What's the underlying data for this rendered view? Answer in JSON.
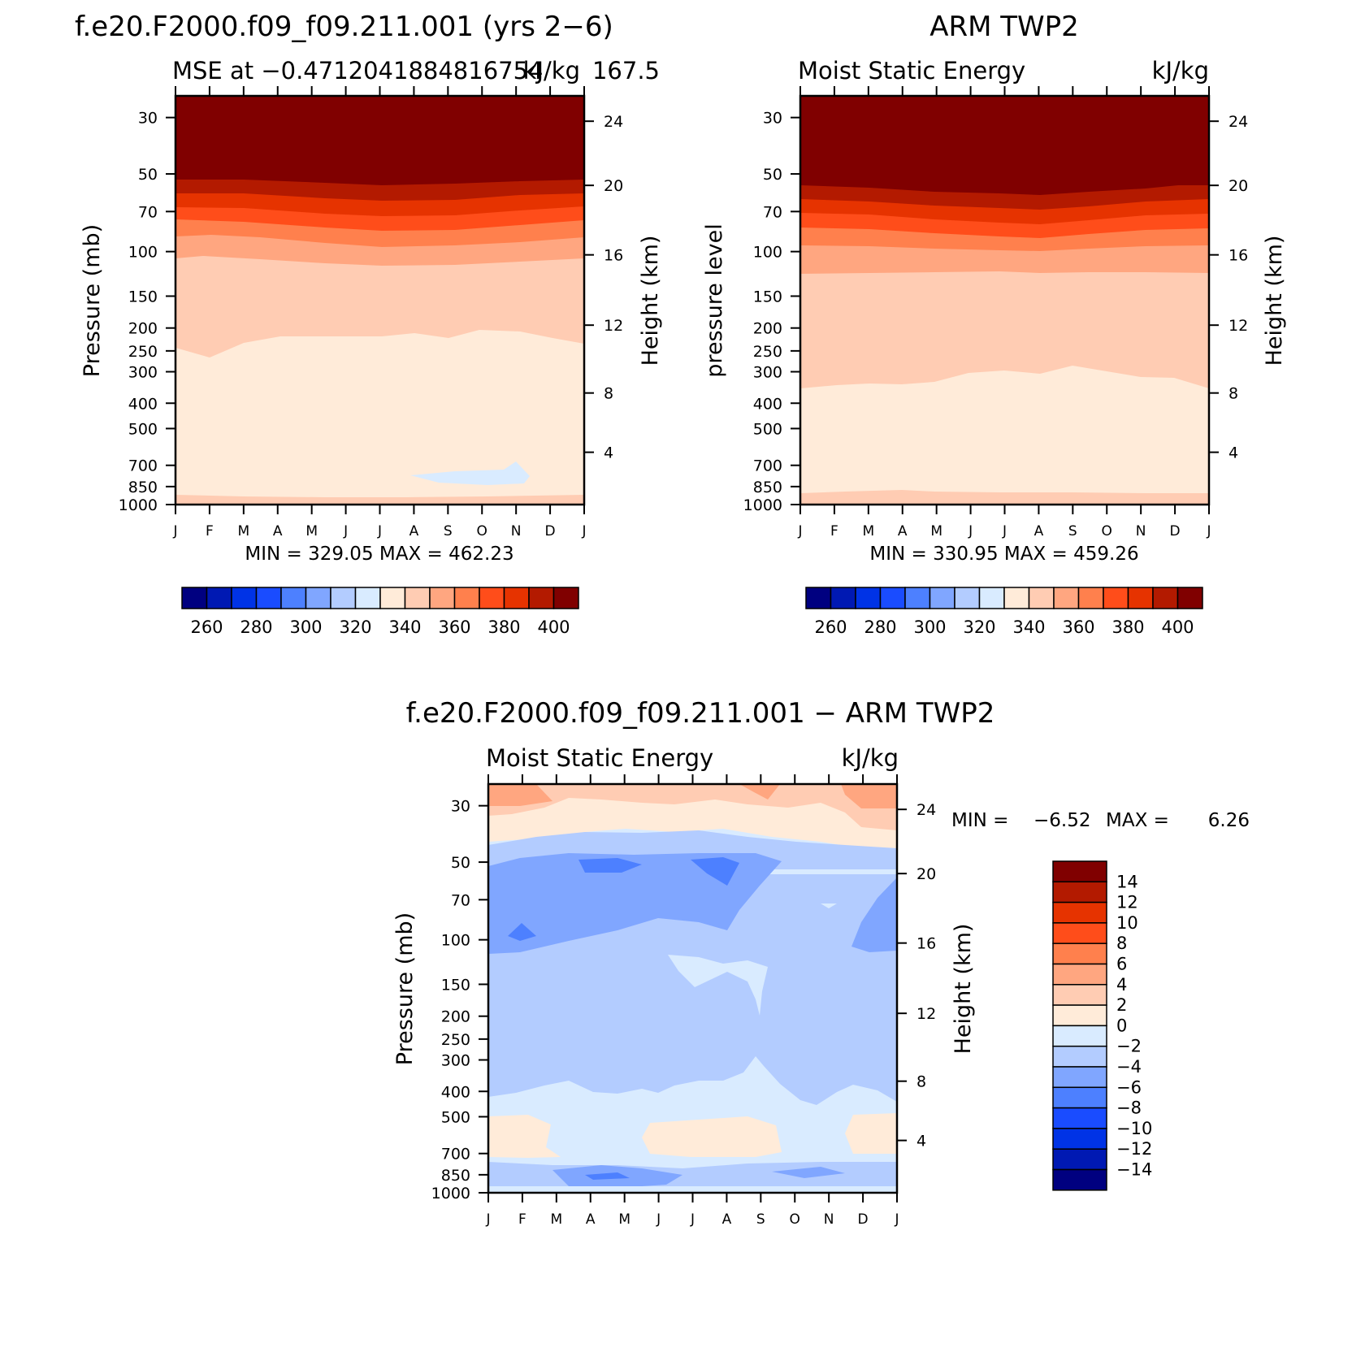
{
  "months": [
    "J",
    "F",
    "M",
    "A",
    "M",
    "J",
    "J",
    "A",
    "S",
    "O",
    "N",
    "D",
    "J"
  ],
  "pressure_ticks": [
    "30",
    "50",
    "70",
    "100",
    "150",
    "200",
    "250",
    "300",
    "400",
    "500",
    "700",
    "850",
    "1000"
  ],
  "height_ticks": [
    "24",
    "20",
    "16",
    "12",
    "8",
    "4"
  ],
  "chart_data": [
    {
      "type": "heatmap",
      "title": "f.e20.F2000.f09_f09.211.001 (yrs 2−6)",
      "subtitle_left": "MSE at −0.4712041884816754",
      "subtitle_right": "kJ/kg",
      "subtitle_extra": "167.5",
      "ylabel": "Pressure (mb)",
      "y2label": "Height (km)",
      "stats": "MIN = 329.05 MAX = 462.23",
      "colorbar_labels": [
        "260",
        "280",
        "300",
        "320",
        "340",
        "360",
        "380",
        "400"
      ],
      "colors": [
        "#000080",
        "#0019b3",
        "#0033e6",
        "#1a4cff",
        "#4d80ff",
        "#80a6ff",
        "#b3ccff",
        "#d9ebff",
        "#ffebd9",
        "#ffccb3",
        "#ffa680",
        "#ff804d",
        "#ff4d1a",
        "#e63300",
        "#b31a00",
        "#800000"
      ],
      "bands_top_to_bottom": [
        ">400",
        "390–400",
        "380–390",
        "370–380",
        "360–370",
        "350–360",
        "340–350",
        "330–340 (local pocket)",
        "340–350 (near surface)"
      ]
    },
    {
      "type": "heatmap",
      "title": "ARM TWP2",
      "subtitle_left": "Moist Static Energy",
      "subtitle_right": "kJ/kg",
      "ylabel": "pressure level",
      "y2label": "Height (km)",
      "stats": "MIN = 330.95 MAX = 459.26",
      "colorbar_labels": [
        "260",
        "280",
        "300",
        "320",
        "340",
        "360",
        "380",
        "400"
      ],
      "colors": [
        "#000080",
        "#0019b3",
        "#0033e6",
        "#1a4cff",
        "#4d80ff",
        "#80a6ff",
        "#b3ccff",
        "#d9ebff",
        "#ffebd9",
        "#ffccb3",
        "#ffa680",
        "#ff804d",
        "#ff4d1a",
        "#e63300",
        "#b31a00",
        "#800000"
      ],
      "bands_top_to_bottom": [
        ">400",
        "390–400",
        "380–390",
        "370–380",
        "360–370",
        "350–360",
        "340–350",
        "350–360 (near surface)"
      ]
    },
    {
      "type": "heatmap",
      "title": "f.e20.F2000.f09_f09.211.001 − ARM TWP2",
      "subtitle_left": "Moist Static Energy",
      "subtitle_right": "kJ/kg",
      "ylabel": "Pressure (mb)",
      "y2label": "Height (km)",
      "stats_label_min": "MIN =",
      "stats_min": "−6.52",
      "stats_label_max": "MAX =",
      "stats_max": "6.26",
      "colorbar_labels": [
        "14",
        "12",
        "10",
        "8",
        "6",
        "4",
        "2",
        "0",
        "−2",
        "−4",
        "−6",
        "−8",
        "−10",
        "−12",
        "−14"
      ],
      "colors": [
        "#800000",
        "#b31a00",
        "#e63300",
        "#ff4d1a",
        "#ff804d",
        "#ffa680",
        "#ffccb3",
        "#ffebd9",
        "#d9ebff",
        "#b3ccff",
        "#80a6ff",
        "#4d80ff",
        "#1a4cff",
        "#0033e6",
        "#0019b3",
        "#000080"
      ]
    }
  ]
}
